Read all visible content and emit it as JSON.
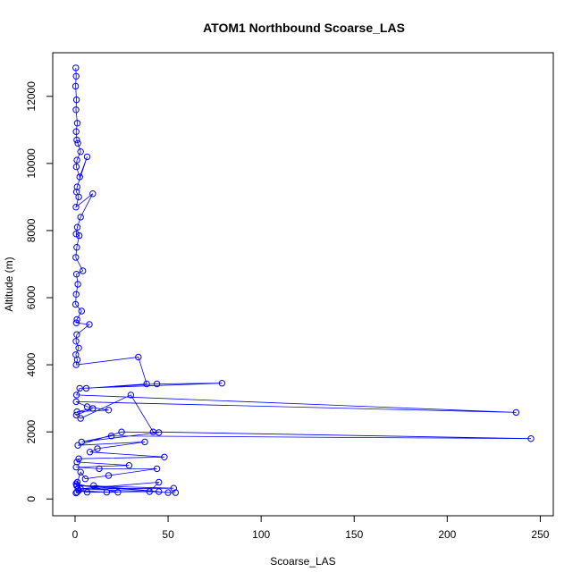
{
  "chart_data": {
    "type": "scatter",
    "title": "ATOM1 Northbound Scoarse_LAS",
    "xlabel": "Scoarse_LAS",
    "ylabel": "Altitude (m)",
    "xlim": [
      -12,
      257
    ],
    "ylim": [
      -500,
      13300
    ],
    "xticks": [
      0,
      50,
      100,
      150,
      200,
      250
    ],
    "yticks": [
      0,
      2000,
      4000,
      6000,
      8000,
      10000,
      12000
    ],
    "grid": false,
    "legend": "none",
    "marker": "open-circle",
    "connected": true,
    "color": "#0000ff",
    "series": [
      {
        "x": [
          0.4,
          0.6,
          0.3,
          0.8,
          0.5,
          1.2,
          0.6,
          0.9,
          1.5,
          3.0,
          1.0,
          0.7,
          2.5,
          6.5,
          1.1,
          0.8,
          2.0,
          0.5,
          9.5,
          3.0,
          1.2,
          0.6,
          2.2,
          0.9,
          0.4,
          4.2,
          0.8,
          1.5,
          0.6,
          0.3,
          3.5,
          1.0,
          0.7,
          7.7,
          0.9,
          0.5,
          2.0,
          0.4,
          1.2,
          0.6,
          34.0,
          38.5,
          6.0,
          44.0,
          79.0,
          2.5,
          0.8,
          237.0,
          0.6,
          6.5,
          18.0,
          1.0,
          9.5,
          0.7,
          3.0,
          30.0,
          42.0,
          245.0,
          19.5,
          3.5,
          45.0,
          25.0,
          1.5,
          37.5,
          12.0,
          8.0,
          48.0,
          2.0,
          1.0,
          29.0,
          0.6,
          13.0,
          44.0,
          18.0,
          5.5,
          3.0,
          1.2,
          0.8,
          53.0,
          1.5,
          45.0,
          40.0,
          6.5,
          2.0,
          17.0,
          23.0,
          0.6,
          1.0,
          45.0,
          10.0,
          50.0,
          54.0,
          3.0,
          1.0,
          0.5
        ],
        "y": [
          12850,
          12600,
          12300,
          11900,
          11600,
          11200,
          10950,
          10700,
          10600,
          10350,
          10100,
          9900,
          9600,
          10200,
          9300,
          9150,
          9000,
          8700,
          9100,
          8400,
          8100,
          7900,
          7850,
          7500,
          7200,
          6800,
          6700,
          6400,
          6100,
          5800,
          5600,
          5350,
          5250,
          5200,
          4900,
          4700,
          4500,
          4300,
          4150,
          4000,
          4230,
          3430,
          3300,
          3430,
          3450,
          3300,
          3100,
          2580,
          2900,
          2750,
          2650,
          2600,
          2700,
          2500,
          2400,
          3100,
          2000,
          1800,
          1880,
          1700,
          1980,
          2000,
          1600,
          1700,
          1500,
          1400,
          1250,
          1200,
          1100,
          1000,
          950,
          900,
          900,
          700,
          600,
          800,
          500,
          400,
          320,
          300,
          500,
          220,
          200,
          250,
          200,
          200,
          450,
          400,
          220,
          400,
          190,
          190,
          300,
          200,
          180
        ]
      }
    ]
  }
}
